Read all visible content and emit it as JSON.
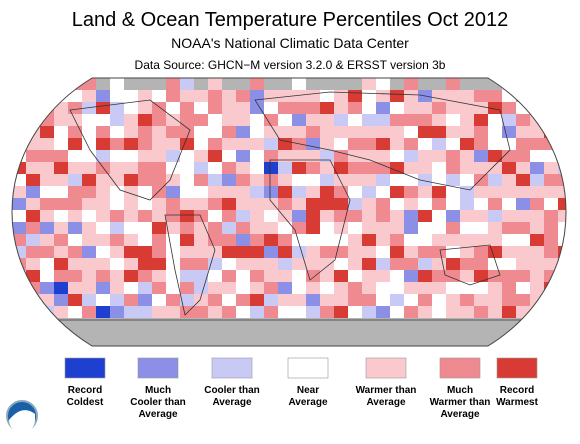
{
  "header": {
    "title": "Land & Ocean Temperature Percentiles Oct 2012",
    "subtitle": "NOAA's National Climatic Data Center",
    "source": "Data Source: GHCN−M version 3.2.0 & ERSST version 3b"
  },
  "legend": [
    {
      "lines": [
        "Record",
        "Coldest"
      ],
      "color": "#1e3fd0"
    },
    {
      "lines": [
        "Much",
        "Cooler than",
        "Average"
      ],
      "color": "#8c8fe6"
    },
    {
      "lines": [
        "Cooler than",
        "Average"
      ],
      "color": "#c9c9f5"
    },
    {
      "lines": [
        "Near",
        "Average"
      ],
      "color": "#ffffff"
    },
    {
      "lines": [
        "Warmer than",
        "Average"
      ],
      "color": "#f9c9cd"
    },
    {
      "lines": [
        "Much",
        "Warmer than",
        "Average"
      ],
      "color": "#ef8a90"
    },
    {
      "lines": [
        "Record",
        "Warmest"
      ],
      "color": "#d83a34"
    }
  ]
}
